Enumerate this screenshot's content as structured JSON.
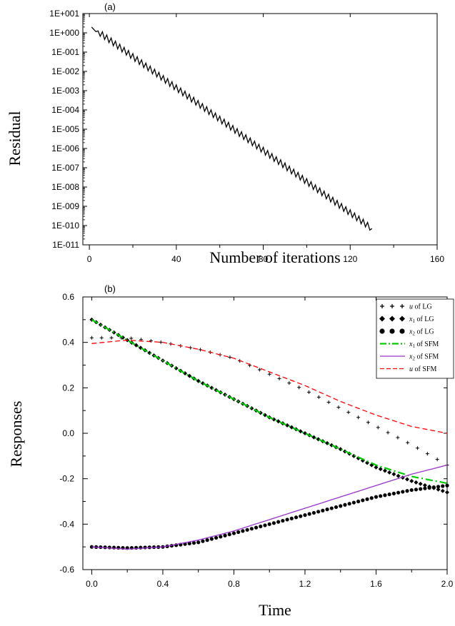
{
  "chart_data": [
    {
      "type": "line",
      "panel_label": "(a)",
      "xlabel": "Number of iterations",
      "ylabel": "Residual",
      "xlim": [
        -3,
        160
      ],
      "ylim_log10": [
        -11,
        1
      ],
      "y_scale": "log",
      "x_ticks": [
        "0",
        "40",
        "80",
        "120",
        "160"
      ],
      "x_tick_values": [
        0,
        40,
        80,
        120,
        160
      ],
      "y_ticks": [
        "1E+001",
        "1E+000",
        "1E-001",
        "1E-002",
        "1E-003",
        "1E-004",
        "1E-005",
        "1E-006",
        "1E-007",
        "1E-008",
        "1E-009",
        "1E-010",
        "1E-011"
      ],
      "y_tick_exponents": [
        1,
        0,
        -1,
        -2,
        -3,
        -4,
        -5,
        -6,
        -7,
        -8,
        -9,
        -10,
        -11
      ],
      "grid": false,
      "series": [
        {
          "x_start": 1,
          "x_end": 130,
          "y_start": 2.0,
          "y_end": 7e-11,
          "zigzag_period": 2,
          "color": "#000000"
        }
      ]
    },
    {
      "type": "line",
      "panel_label": "(b)",
      "xlabel": "Time",
      "ylabel": "Responses",
      "xlim": [
        -0.05,
        2.0
      ],
      "ylim": [
        -0.6,
        0.6
      ],
      "x_ticks": [
        "0.0",
        "0.4",
        "0.8",
        "1.2",
        "1.6",
        "2.0"
      ],
      "x_tick_values": [
        0.0,
        0.4,
        0.8,
        1.2,
        1.6,
        2.0
      ],
      "y_ticks": [
        "0.6",
        "0.4",
        "0.2",
        "0.0",
        "-0.2",
        "-0.4",
        "-0.6"
      ],
      "y_tick_values": [
        0.6,
        0.4,
        0.2,
        0.0,
        -0.2,
        -0.4,
        -0.6
      ],
      "grid": false,
      "legend_position": "top-right",
      "series": [
        {
          "name_var": "u",
          "name_suffix": "of LG",
          "marker": "plus",
          "color": "#000000",
          "x": [
            0,
            0.2,
            0.4,
            0.6,
            0.8,
            1.0,
            1.2,
            1.4,
            1.6,
            1.8,
            2.0
          ],
          "y": [
            0.42,
            0.42,
            0.4,
            0.37,
            0.33,
            0.26,
            0.19,
            0.11,
            0.03,
            -0.05,
            -0.14
          ]
        },
        {
          "name_var": "x1",
          "name_suffix": "of LG",
          "marker": "diamond",
          "color": "#000000",
          "x": [
            0,
            0.2,
            0.4,
            0.6,
            0.8,
            1.0,
            1.2,
            1.4,
            1.6,
            1.8,
            2.0
          ],
          "y": [
            0.5,
            0.41,
            0.32,
            0.23,
            0.15,
            0.07,
            0.0,
            -0.07,
            -0.15,
            -0.21,
            -0.26
          ]
        },
        {
          "name_var": "x2",
          "name_suffix": "of LG",
          "marker": "dot",
          "color": "#000000",
          "x": [
            0,
            0.2,
            0.4,
            0.6,
            0.8,
            1.0,
            1.2,
            1.4,
            1.6,
            1.8,
            2.0
          ],
          "y": [
            -0.5,
            -0.505,
            -0.5,
            -0.48,
            -0.44,
            -0.4,
            -0.36,
            -0.32,
            -0.28,
            -0.25,
            -0.23
          ]
        },
        {
          "name_var": "x1",
          "name_suffix": "of SFM",
          "line_style": "dash-dot",
          "color": "#00cc00",
          "x": [
            0,
            0.2,
            0.4,
            0.6,
            0.8,
            1.0,
            1.2,
            1.4,
            1.6,
            1.8,
            2.0
          ],
          "y": [
            0.5,
            0.41,
            0.32,
            0.23,
            0.15,
            0.07,
            0.0,
            -0.07,
            -0.14,
            -0.19,
            -0.22
          ]
        },
        {
          "name_var": "x2",
          "name_suffix": "of SFM",
          "line_style": "solid",
          "color": "#9933cc",
          "x": [
            0,
            0.2,
            0.4,
            0.6,
            0.8,
            1.0,
            1.2,
            1.4,
            1.6,
            1.8,
            2.0
          ],
          "y": [
            -0.5,
            -0.51,
            -0.5,
            -0.47,
            -0.43,
            -0.38,
            -0.33,
            -0.28,
            -0.23,
            -0.18,
            -0.14
          ]
        },
        {
          "name_var": "u",
          "name_suffix": "of SFM",
          "line_style": "dashed",
          "color": "#ff0000",
          "x": [
            0,
            0.2,
            0.4,
            0.6,
            0.8,
            1.0,
            1.2,
            1.4,
            1.6,
            1.8,
            2.0
          ],
          "y": [
            0.395,
            0.41,
            0.4,
            0.37,
            0.33,
            0.27,
            0.21,
            0.14,
            0.08,
            0.03,
            0.0
          ]
        }
      ]
    }
  ]
}
